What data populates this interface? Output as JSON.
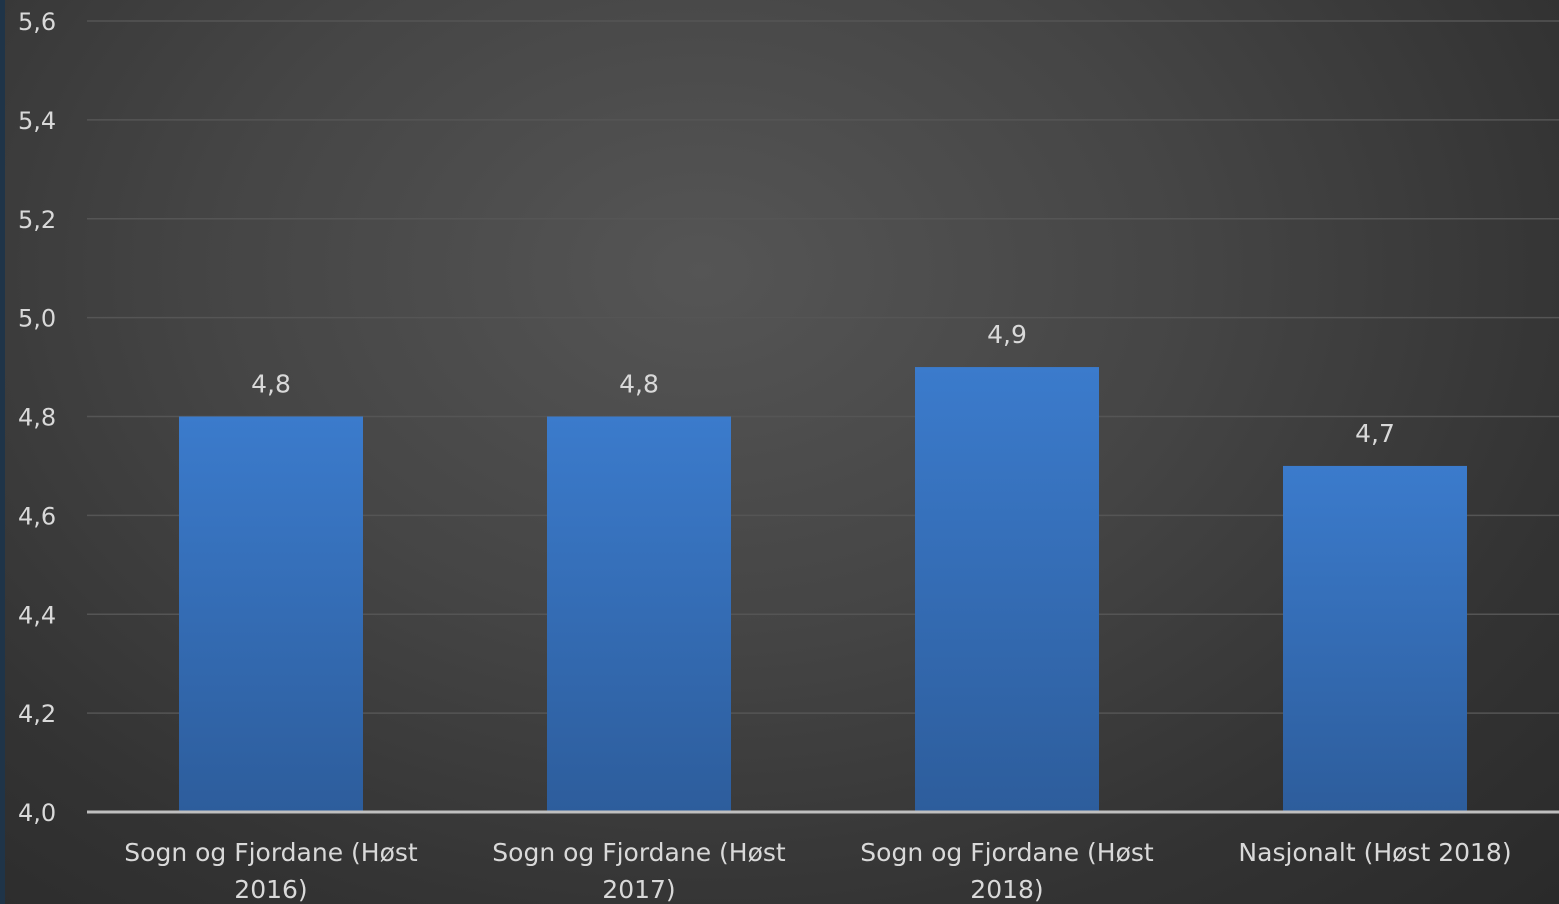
{
  "chart_data": {
    "type": "bar",
    "title": "",
    "xlabel": "",
    "ylabel": "",
    "ylim": [
      4.0,
      5.6
    ],
    "yticks": [
      "4,0",
      "4,2",
      "4,4",
      "4,6",
      "4,8",
      "5,0",
      "5,2",
      "5,4",
      "5,6"
    ],
    "ytick_values": [
      4.0,
      4.2,
      4.4,
      4.6,
      4.8,
      5.0,
      5.2,
      5.4,
      5.6
    ],
    "categories": [
      [
        "Sogn og Fjordane (Høst",
        "2016)"
      ],
      [
        "Sogn og Fjordane (Høst",
        "2017)"
      ],
      [
        "Sogn og Fjordane (Høst",
        "2018)"
      ],
      [
        "Nasjonalt (Høst 2018)"
      ]
    ],
    "values": [
      4.8,
      4.8,
      4.9,
      4.7
    ],
    "data_labels": [
      "4,8",
      "4,8",
      "4,9",
      "4,7"
    ],
    "grid": true,
    "legend": "none",
    "colors": {
      "bar_top": "#3b7bcc",
      "bar_bottom": "#2d5d9c",
      "grid": "#555555",
      "axis": "#bfbfbf",
      "text": "#d9d9d9"
    }
  }
}
